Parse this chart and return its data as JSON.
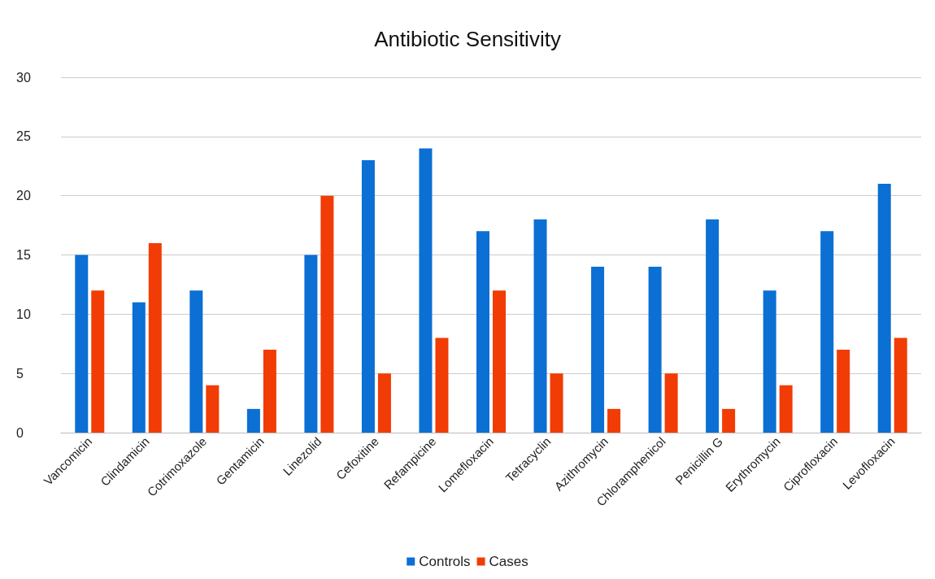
{
  "chart_data": {
    "type": "bar",
    "title": "Antibiotic Sensitivity",
    "categories": [
      "Vancomicin",
      "Clindamicin",
      "Cotrimoxazole",
      "Gentamicin",
      "Linezolid",
      "Cefoxitine",
      "Refampicine",
      "Lomefloxacin",
      "Tetracyclin",
      "Azithromycin",
      "Chloramphenicol",
      "Penicillin G",
      "Erythromycin",
      "Ciprofloxacin",
      "Levofloxacin"
    ],
    "series": [
      {
        "name": "Controls",
        "color": "#0b6fd4",
        "values": [
          15,
          11,
          12,
          2,
          15,
          23,
          24,
          17,
          18,
          14,
          14,
          18,
          12,
          17,
          21
        ]
      },
      {
        "name": "Cases",
        "color": "#f23c05",
        "values": [
          12,
          16,
          4,
          7,
          20,
          5,
          8,
          12,
          5,
          2,
          5,
          2,
          4,
          7,
          8
        ]
      }
    ],
    "ylim": [
      0,
      30
    ],
    "yticks": [
      0,
      5,
      10,
      15,
      20,
      25,
      30
    ],
    "grid": "y",
    "legend": "bottom"
  }
}
